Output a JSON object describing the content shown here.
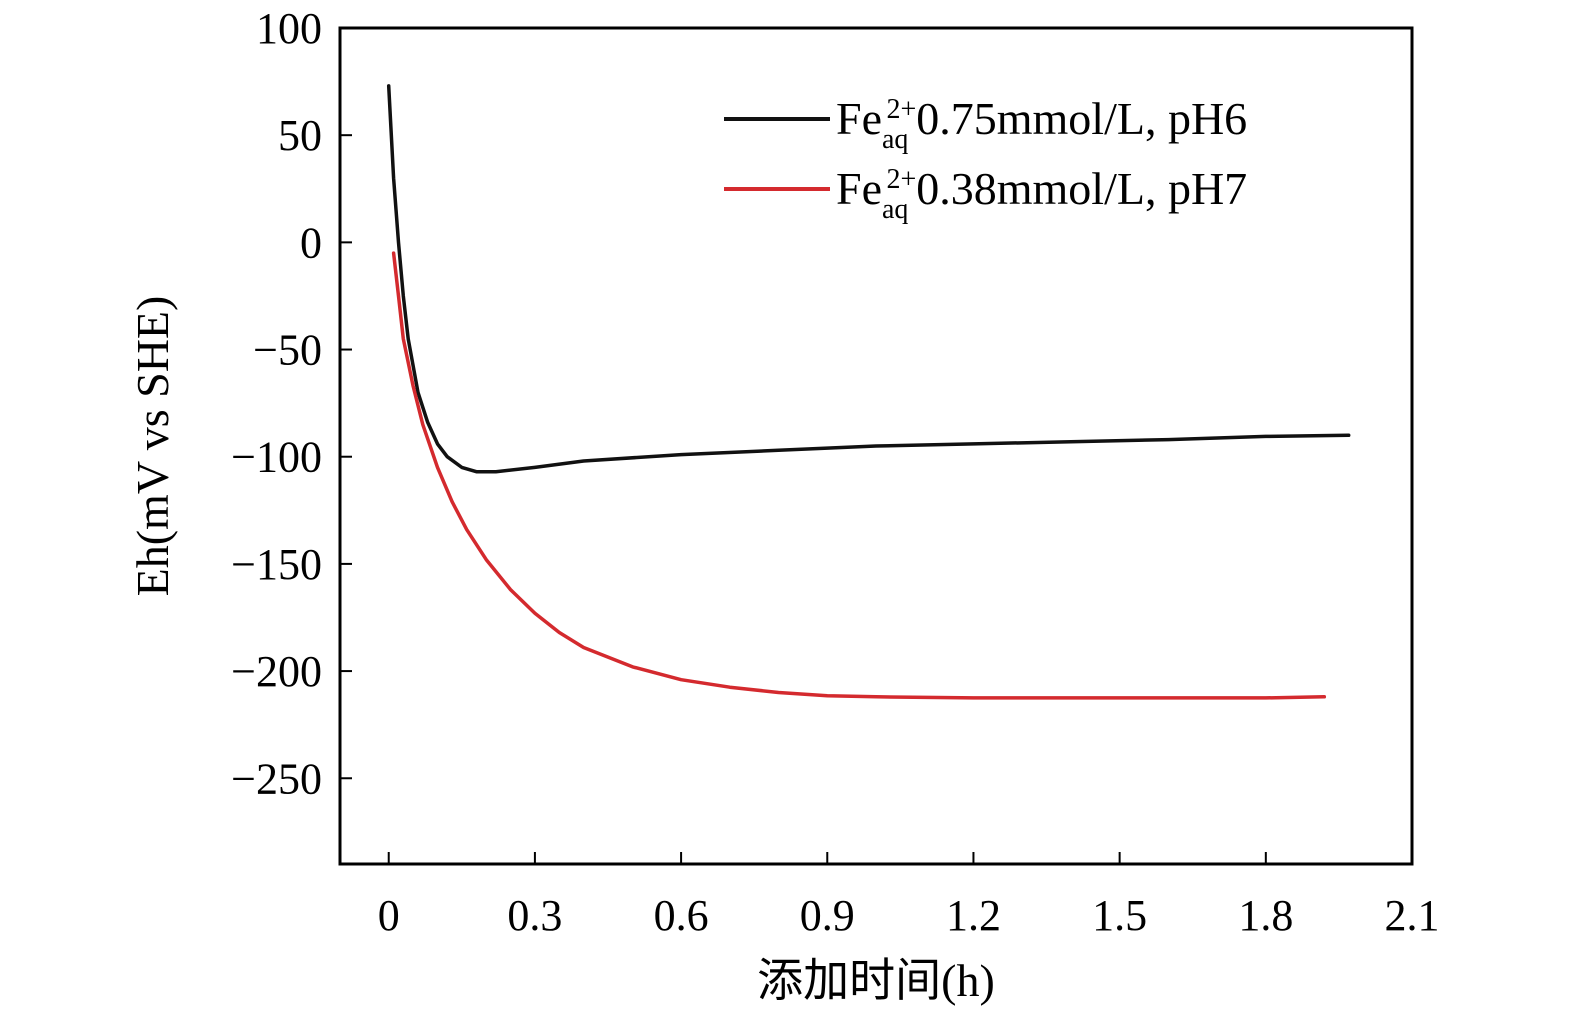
{
  "chart_data": {
    "type": "line",
    "title": "",
    "xlabel": "添加时间(h)",
    "ylabel": "Eh(mV vs SHE)",
    "xlim": [
      -0.1,
      2.1
    ],
    "ylim": [
      -290,
      100
    ],
    "xticks": [
      0,
      0.3,
      0.6,
      0.9,
      1.2,
      1.5,
      1.8,
      2.1
    ],
    "xtick_labels": [
      "0",
      "0.3",
      "0.6",
      "0.9",
      "1.2",
      "1.5",
      "1.8",
      "2.1"
    ],
    "yticks": [
      100,
      50,
      0,
      -50,
      -100,
      -150,
      -200,
      -250
    ],
    "ytick_labels": [
      "100",
      "50",
      "0",
      "−50",
      "−100",
      "−150",
      "−200",
      "−250"
    ],
    "grid": false,
    "legend_position": "top-right",
    "series": [
      {
        "name": "Fe_aq^2+ 0.75mmol/L, pH6",
        "legend": {
          "main": "Fe",
          "sub": "aq",
          "sup": "2+",
          "rest": "0.75mmol/L, pH6"
        },
        "color": "#111111",
        "x": [
          0,
          0.01,
          0.02,
          0.03,
          0.04,
          0.06,
          0.08,
          0.1,
          0.12,
          0.15,
          0.18,
          0.22,
          0.3,
          0.4,
          0.6,
          0.8,
          1.0,
          1.2,
          1.4,
          1.6,
          1.8,
          1.97
        ],
        "y": [
          73,
          30,
          0,
          -25,
          -45,
          -70,
          -84,
          -94,
          -100,
          -105,
          -107,
          -107,
          -105,
          -102,
          -99,
          -97,
          -95,
          -94,
          -93,
          -92,
          -90.5,
          -90
        ]
      },
      {
        "name": "Fe_aq^2+ 0.38mmol/L, pH7",
        "legend": {
          "main": "Fe",
          "sub": "aq",
          "sup": "2+",
          "rest": "0.38mmol/L, pH7"
        },
        "color": "#d42a2e",
        "x": [
          0.01,
          0.02,
          0.03,
          0.05,
          0.07,
          0.1,
          0.13,
          0.16,
          0.2,
          0.25,
          0.3,
          0.35,
          0.4,
          0.5,
          0.6,
          0.7,
          0.8,
          0.9,
          1.0,
          1.2,
          1.4,
          1.6,
          1.8,
          1.92
        ],
        "y": [
          -5,
          -25,
          -45,
          -67,
          -85,
          -105,
          -121,
          -134,
          -148,
          -162,
          -173,
          -182,
          -189,
          -198,
          -204,
          -207.5,
          -210,
          -211.5,
          -212,
          -212.5,
          -212.5,
          -212.5,
          -212.5,
          -212
        ]
      }
    ]
  }
}
